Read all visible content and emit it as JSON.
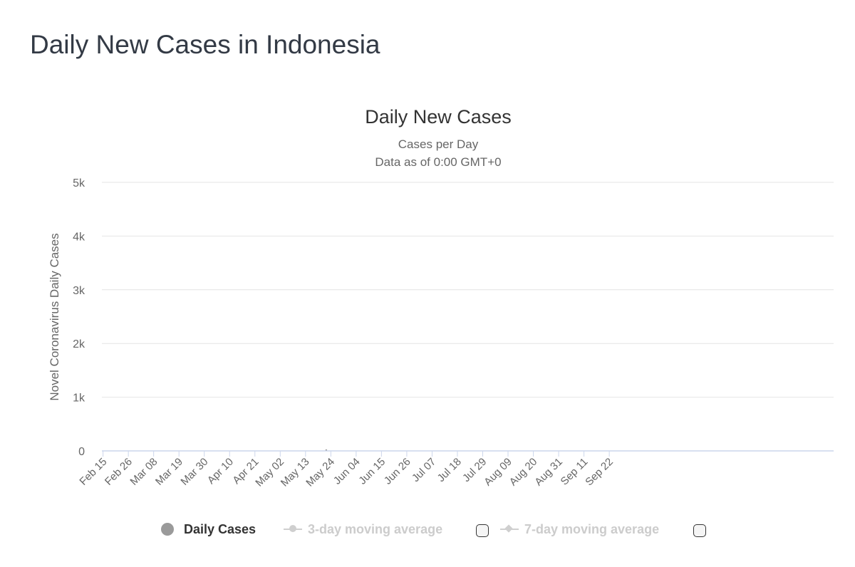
{
  "page": {
    "title": "Daily New Cases in Indonesia"
  },
  "legend": {
    "daily_label": "Daily Cases",
    "ma3_label": "3-day moving average",
    "ma7_label": "7-day moving average"
  },
  "colors": {
    "bar": "#9a9a9a",
    "grid": "#e4e4e4",
    "axis": "#ccd6eb",
    "text": "#666666",
    "disabled": "#cccccc"
  },
  "chart_data": {
    "type": "bar",
    "title": "Daily New Cases",
    "subtitle_lines": [
      "Cases per Day",
      "Data as of 0:00 GMT+0"
    ],
    "ylabel": "Novel Coronavirus Daily Cases",
    "xlabel": "",
    "ylim": [
      0,
      5000
    ],
    "y_ticks": [
      0,
      1000,
      2000,
      3000,
      4000,
      5000
    ],
    "y_tick_labels": [
      "0",
      "1k",
      "2k",
      "3k",
      "4k",
      "5k"
    ],
    "x_tick_labels": [
      "Feb 15",
      "Feb 26",
      "Mar 08",
      "Mar 19",
      "Mar 30",
      "Apr 10",
      "Apr 21",
      "May 02",
      "May 13",
      "May 24",
      "Jun 04",
      "Jun 15",
      "Jun 26",
      "Jul 07",
      "Jul 18",
      "Jul 29",
      "Aug 09",
      "Aug 20",
      "Aug 31",
      "Sep 11",
      "Sep 22"
    ],
    "x_tick_interval_days": 11,
    "grid": true,
    "legend_position": "bottom",
    "series": [
      {
        "name": "Daily Cases",
        "start_date": "Feb 15",
        "values": [
          0,
          0,
          0,
          0,
          0,
          0,
          0,
          0,
          0,
          0,
          0,
          0,
          0,
          0,
          0,
          0,
          0,
          0,
          0,
          0,
          0,
          0,
          0,
          0,
          0,
          0,
          0,
          0,
          0,
          0,
          0,
          0,
          0,
          0,
          0,
          0,
          0,
          0,
          0,
          0,
          0,
          0,
          0,
          0,
          0,
          0,
          2,
          0,
          0,
          0,
          0,
          0,
          0,
          0,
          0,
          0,
          0,
          0,
          0,
          0,
          4,
          0,
          0,
          0,
          0,
          0,
          0,
          0,
          0,
          0,
          0,
          0,
          0,
          0,
          0,
          0,
          0,
          0,
          0,
          0,
          0,
          0,
          0,
          0,
          0,
          0,
          3,
          0,
          0,
          0,
          0,
          0,
          0,
          0,
          0,
          0,
          0,
          27,
          0,
          0,
          0,
          0,
          0,
          0,
          0,
          0,
          0,
          0,
          0,
          0,
          0,
          0,
          0,
          0,
          0,
          0,
          0,
          0,
          0,
          0,
          0,
          0,
          0,
          0,
          0,
          0,
          0,
          0,
          0,
          0,
          0,
          0,
          0,
          0,
          0,
          0,
          0,
          0,
          0,
          0,
          0,
          0,
          0,
          0,
          0,
          0,
          0,
          0,
          0,
          0,
          0,
          0,
          0,
          0,
          0,
          0,
          0,
          0,
          0,
          0,
          0,
          0,
          0,
          0,
          0,
          0,
          0,
          0,
          0,
          0,
          0,
          0,
          0,
          0,
          0,
          0,
          0,
          0,
          0,
          0,
          0,
          0,
          0,
          0,
          0,
          0,
          0,
          0,
          0,
          0,
          0,
          0,
          0,
          0,
          0,
          0,
          0,
          0,
          0,
          0,
          0,
          0,
          0,
          0,
          0,
          0,
          0,
          0,
          0,
          0,
          0,
          0,
          0,
          0,
          0,
          0,
          0,
          0,
          0,
          0,
          0,
          0,
          0,
          0,
          0,
          0,
          0,
          0,
          0,
          0,
          0,
          0,
          0,
          0,
          0,
          0,
          0,
          0,
          0,
          0,
          0,
          0,
          0,
          0,
          0,
          0,
          0,
          0,
          0,
          0,
          0,
          0,
          0,
          0,
          0,
          0,
          0,
          0,
          0,
          0,
          0,
          0,
          0,
          0,
          0,
          0,
          0,
          0,
          0,
          0,
          0,
          0,
          0,
          0,
          0,
          0,
          0,
          0,
          0,
          0,
          0,
          0,
          0,
          0,
          0,
          0,
          0,
          0,
          0,
          0,
          0,
          0,
          0,
          0,
          0,
          0,
          0,
          0,
          0,
          0,
          0,
          0,
          0,
          0,
          0,
          0,
          0,
          0,
          0,
          0,
          0,
          0,
          0,
          0,
          0,
          0,
          0,
          0
        ]
      }
    ]
  }
}
